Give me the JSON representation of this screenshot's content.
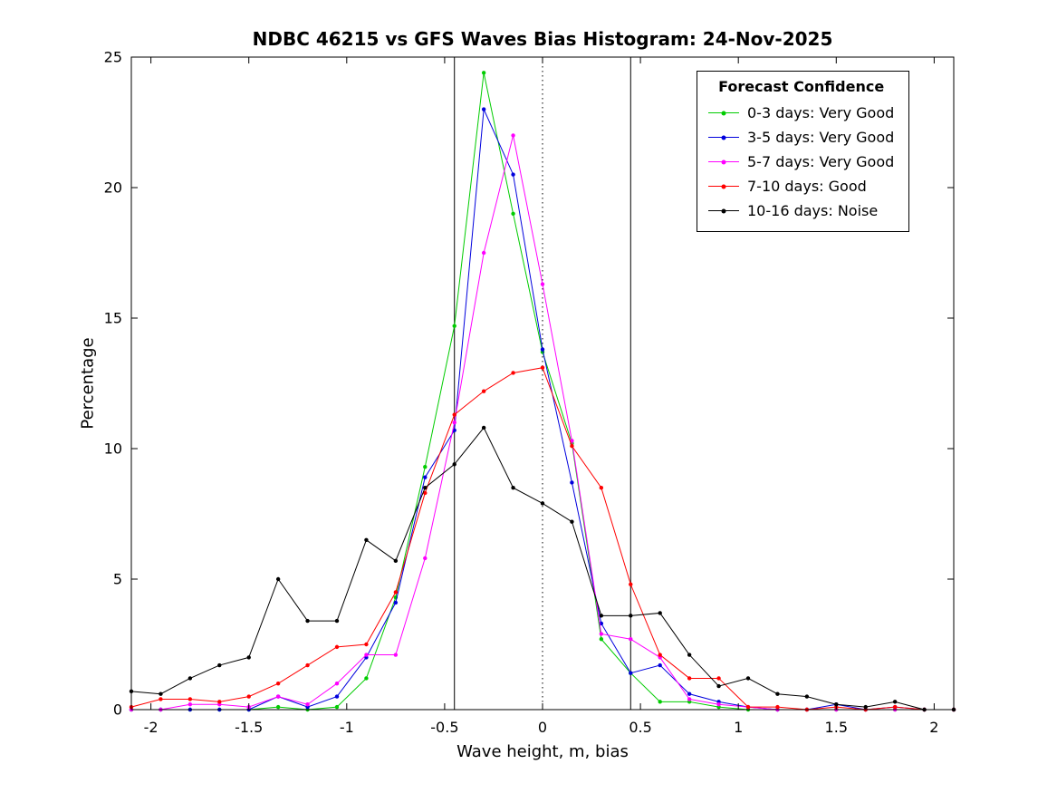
{
  "legend": {
    "title": "Forecast Confidence",
    "entries": [
      {
        "label": "0-3 days: Very Good",
        "color": "#00cc00"
      },
      {
        "label": "3-5 days: Very Good",
        "color": "#0000dd"
      },
      {
        "label": "5-7 days: Very Good",
        "color": "#ff00ff"
      },
      {
        "label": "7-10 days: Good",
        "color": "#ff0000"
      },
      {
        "label": "10-16 days: Noise",
        "color": "#000000"
      }
    ]
  },
  "chart_data": {
    "type": "line",
    "title": "NDBC 46215 vs GFS Waves Bias Histogram: 24-Nov-2025",
    "xlabel": "Wave height, m, bias",
    "ylabel": "Percentage",
    "xlim": [
      -2.1,
      2.1
    ],
    "ylim": [
      0,
      25
    ],
    "xticks": [
      -2,
      -1.5,
      -1,
      -0.5,
      0,
      0.5,
      1,
      1.5,
      2
    ],
    "yticks": [
      0,
      5,
      10,
      15,
      20,
      25
    ],
    "grid": false,
    "legend_position": "top-right",
    "reference_lines": {
      "solid": [
        -0.45,
        0.45
      ],
      "dotted": [
        0
      ]
    },
    "x": [
      -2.1,
      -1.95,
      -1.8,
      -1.65,
      -1.5,
      -1.35,
      -1.2,
      -1.05,
      -0.9,
      -0.75,
      -0.6,
      -0.45,
      -0.3,
      -0.15,
      0,
      0.15,
      0.3,
      0.45,
      0.6,
      0.75,
      0.9,
      1.05,
      1.2,
      1.35,
      1.5,
      1.65,
      1.8,
      1.95,
      2.1
    ],
    "series": [
      {
        "name": "0-3 days: Very Good",
        "color": "#00cc00",
        "values": [
          0,
          0,
          0,
          0,
          0,
          0.1,
          0,
          0.1,
          1.2,
          4.3,
          9.3,
          14.7,
          24.4,
          19.0,
          13.7,
          10.2,
          2.7,
          1.4,
          0.3,
          0.3,
          0.1,
          0,
          0,
          0,
          0,
          0,
          0,
          0,
          0
        ]
      },
      {
        "name": "3-5 days: Very Good",
        "color": "#0000dd",
        "values": [
          0,
          0,
          0,
          0,
          0,
          0.5,
          0.1,
          0.5,
          2.0,
          4.1,
          8.9,
          10.7,
          23.0,
          20.5,
          13.8,
          8.7,
          3.3,
          1.4,
          1.7,
          0.6,
          0.3,
          0.1,
          0,
          0,
          0.2,
          0,
          0.1,
          0,
          0
        ]
      },
      {
        "name": "5-7 days: Very Good",
        "color": "#ff00ff",
        "values": [
          0,
          0,
          0.2,
          0.2,
          0.1,
          0.5,
          0.2,
          1.0,
          2.1,
          2.1,
          5.8,
          11.0,
          17.5,
          22.0,
          16.3,
          10.3,
          2.9,
          2.7,
          2.0,
          0.4,
          0.2,
          0.1,
          0,
          0,
          0,
          0,
          0,
          0,
          0
        ]
      },
      {
        "name": "7-10 days: Good",
        "color": "#ff0000",
        "values": [
          0.1,
          0.4,
          0.4,
          0.3,
          0.5,
          1.0,
          1.7,
          2.4,
          2.5,
          4.5,
          8.3,
          11.3,
          12.2,
          12.9,
          13.1,
          10.1,
          8.5,
          4.8,
          2.1,
          1.2,
          1.2,
          0.1,
          0.1,
          0,
          0.1,
          0,
          0.1,
          0,
          0
        ]
      },
      {
        "name": "10-16 days: Noise",
        "color": "#000000",
        "values": [
          0.7,
          0.6,
          1.2,
          1.7,
          2.0,
          5.0,
          3.4,
          3.4,
          6.5,
          5.7,
          8.5,
          9.4,
          10.8,
          8.5,
          7.9,
          7.2,
          3.6,
          3.6,
          3.7,
          2.1,
          0.9,
          1.2,
          0.6,
          0.5,
          0.2,
          0.1,
          0.3,
          0,
          0
        ]
      }
    ]
  }
}
